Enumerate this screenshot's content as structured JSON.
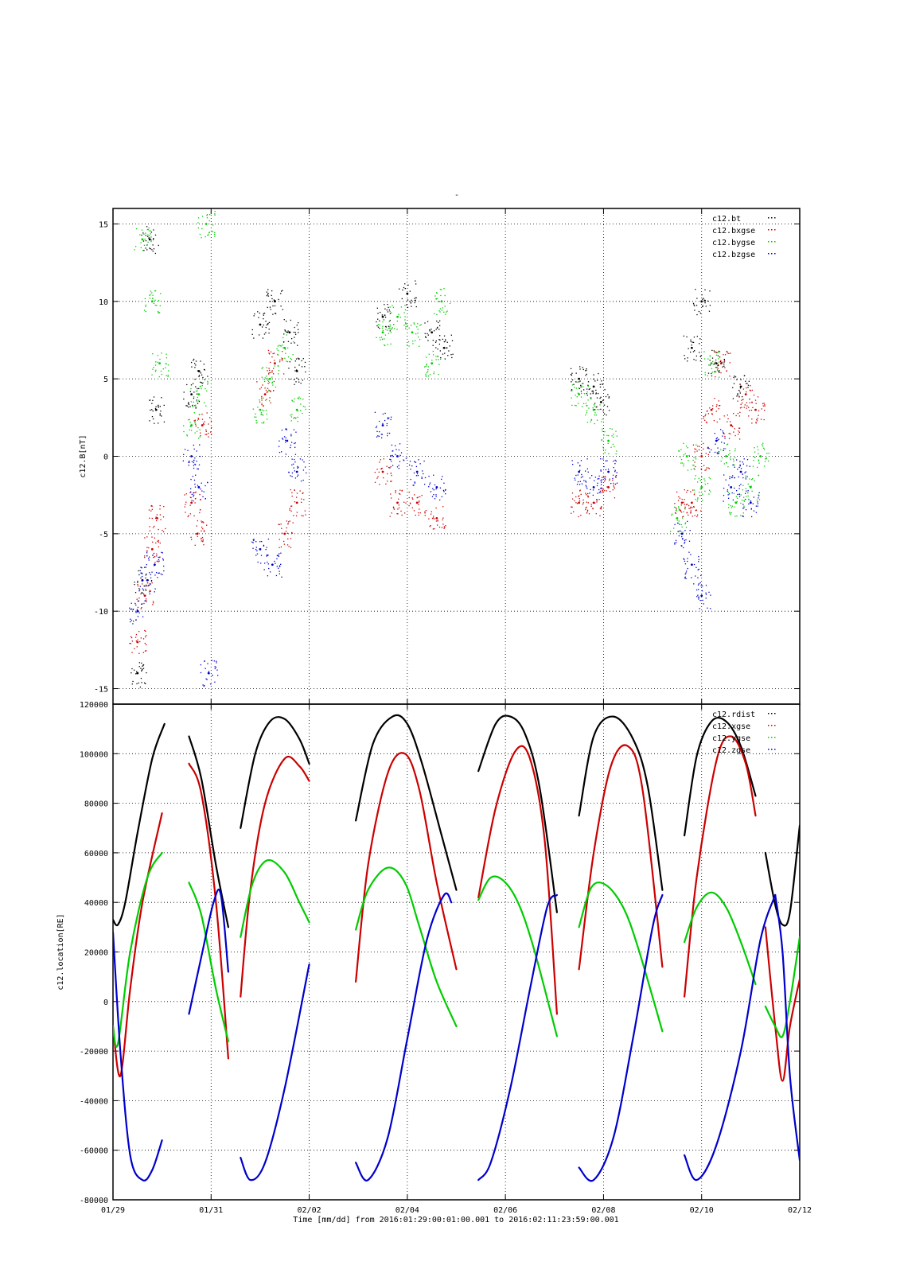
{
  "title_mark": "-",
  "x_axis": {
    "label": "Time [mm/dd]  from 2016:01:29:00:01:00.001  to  2016:02:11:23:59:00.001",
    "tick_labels": [
      "01/29",
      "01/31",
      "02/02",
      "02/04",
      "02/06",
      "02/08",
      "02/10",
      "02/12"
    ],
    "range_days": [
      0,
      14
    ]
  },
  "colors": {
    "black": "#000000",
    "red": "#cc0000",
    "green": "#00cc00",
    "blue": "#0000cc"
  },
  "chart_data": [
    {
      "type": "scatter",
      "ylabel": "c12.B[nT]",
      "ylim": [
        -16,
        16
      ],
      "y_ticks": [
        -15,
        -10,
        -5,
        0,
        5,
        10,
        15
      ],
      "grid": true,
      "legend_position": "top-right",
      "series": [
        {
          "name": "c12.bt",
          "color": "#000000",
          "x": [
            0.5,
            0.6,
            0.75,
            0.88,
            1.6,
            1.75,
            3.0,
            3.3,
            3.6,
            3.75,
            5.5,
            6.0,
            6.5,
            6.75,
            9.5,
            9.8,
            9.95,
            11.8,
            12.0,
            12.3,
            12.8
          ],
          "y": [
            -14,
            -8,
            14,
            3,
            4,
            5.5,
            8.5,
            10,
            8,
            5.5,
            9,
            10.5,
            8,
            7,
            5,
            4.5,
            3.5,
            7,
            10,
            6,
            4.5
          ]
        },
        {
          "name": "c12.bxgse",
          "color": "#cc0000",
          "x": [
            0.5,
            0.65,
            0.8,
            0.9,
            1.6,
            1.72,
            1.82,
            3.1,
            3.3,
            3.5,
            3.75,
            5.5,
            5.8,
            6.2,
            6.6,
            9.5,
            9.8,
            10.1,
            11.6,
            11.8,
            12.0,
            12.2,
            12.4,
            12.6,
            12.9,
            13.1
          ],
          "y": [
            -12,
            -9,
            -6,
            -4,
            -3,
            -5,
            2,
            4,
            6,
            -5,
            -3,
            -1,
            -3,
            -3,
            -4,
            -3,
            -3,
            -2,
            -3,
            -3,
            0,
            3,
            6,
            2,
            4,
            3
          ]
        },
        {
          "name": "c12.bygse",
          "color": "#00cc00",
          "x": [
            0.6,
            0.8,
            0.95,
            1.6,
            1.75,
            1.9,
            3.0,
            3.2,
            3.5,
            3.75,
            5.5,
            5.8,
            6.1,
            6.5,
            6.7,
            9.5,
            9.8,
            10.1,
            11.5,
            11.7,
            12.0,
            12.2,
            12.5,
            12.7,
            13.0,
            13.2
          ],
          "y": [
            14,
            10,
            6,
            2,
            4,
            15,
            3,
            5,
            7,
            3,
            8,
            9,
            8,
            6,
            10,
            4,
            3,
            1,
            -4,
            0,
            -2,
            6,
            0,
            -3,
            -2,
            0
          ]
        },
        {
          "name": "c12.bzgse",
          "color": "#0000cc",
          "x": [
            0.5,
            0.7,
            0.85,
            1.6,
            1.75,
            1.95,
            3.0,
            3.25,
            3.55,
            3.75,
            5.5,
            5.8,
            6.2,
            6.6,
            9.5,
            9.8,
            10.1,
            11.6,
            11.8,
            12.0,
            12.3,
            12.6,
            12.8,
            13.0
          ],
          "y": [
            -10,
            -8,
            -7,
            0,
            -2,
            -14,
            -6,
            -7,
            1,
            -1,
            2,
            0,
            -1,
            -2,
            -1,
            -2,
            -1,
            -5,
            -7,
            -9,
            1,
            -2,
            -1,
            -3
          ]
        }
      ]
    },
    {
      "type": "line",
      "ylabel": "c12.location[RE]",
      "ylim": [
        -80000,
        120000
      ],
      "y_ticks": [
        -80000,
        -60000,
        -40000,
        -20000,
        0,
        20000,
        40000,
        60000,
        80000,
        100000,
        120000
      ],
      "grid": true,
      "legend_position": "top-right",
      "series": [
        {
          "name": "c12.rdist",
          "color": "#000000",
          "segments": [
            {
              "x": [
                0.0,
                0.1,
                0.25,
                0.5,
                0.8,
                1.05
              ],
              "y": [
                33000,
                31000,
                40000,
                68000,
                98000,
                112000
              ]
            },
            {
              "x": [
                1.55,
                1.8,
                2.1,
                2.35
              ],
              "y": [
                107000,
                90000,
                55000,
                30000
              ]
            },
            {
              "x": [
                2.6,
                2.9,
                3.2,
                3.5,
                3.8,
                4.0
              ],
              "y": [
                70000,
                100000,
                113000,
                114000,
                106000,
                96000
              ]
            },
            {
              "x": [
                4.95,
                5.3,
                5.7,
                6.0,
                6.3,
                6.7,
                7.0
              ],
              "y": [
                73000,
                104000,
                115000,
                112000,
                96000,
                67000,
                45000
              ]
            },
            {
              "x": [
                7.45,
                7.8,
                8.1,
                8.4,
                8.7,
                9.05
              ],
              "y": [
                93000,
                112000,
                115000,
                108000,
                86000,
                36000
              ]
            },
            {
              "x": [
                9.5,
                9.8,
                10.2,
                10.6,
                10.9,
                11.2
              ],
              "y": [
                75000,
                107000,
                115000,
                106000,
                87000,
                45000
              ]
            },
            {
              "x": [
                11.65,
                11.9,
                12.2,
                12.5,
                12.8,
                13.1
              ],
              "y": [
                67000,
                99000,
                113000,
                113000,
                103000,
                83000
              ]
            },
            {
              "x": [
                13.3,
                13.5,
                13.65,
                13.8,
                14.0
              ],
              "y": [
                60000,
                39000,
                31000,
                36000,
                71000
              ]
            }
          ]
        },
        {
          "name": "c12.xgse",
          "color": "#cc0000",
          "segments": [
            {
              "x": [
                0.0,
                0.15,
                0.35,
                0.6,
                1.0
              ],
              "y": [
                -10000,
                -30000,
                5000,
                40000,
                76000
              ]
            },
            {
              "x": [
                1.55,
                1.8,
                2.1,
                2.35
              ],
              "y": [
                96000,
                84000,
                40000,
                -23000
              ]
            },
            {
              "x": [
                2.6,
                2.8,
                3.1,
                3.5,
                3.8,
                4.0
              ],
              "y": [
                2000,
                45000,
                80000,
                98000,
                95000,
                89000
              ]
            },
            {
              "x": [
                4.95,
                5.2,
                5.6,
                5.95,
                6.25,
                6.6,
                7.0
              ],
              "y": [
                8000,
                55000,
                92000,
                100000,
                85000,
                48000,
                13000
              ]
            },
            {
              "x": [
                7.45,
                7.8,
                8.2,
                8.5,
                8.8,
                9.05
              ],
              "y": [
                42000,
                78000,
                101000,
                98000,
                65000,
                -5000
              ]
            },
            {
              "x": [
                9.5,
                9.8,
                10.15,
                10.5,
                10.8,
                11.2
              ],
              "y": [
                13000,
                60000,
                95000,
                103000,
                85000,
                14000
              ]
            },
            {
              "x": [
                11.65,
                11.9,
                12.3,
                12.6,
                12.9,
                13.1
              ],
              "y": [
                2000,
                50000,
                97000,
                107000,
                96000,
                75000
              ]
            },
            {
              "x": [
                13.3,
                13.5,
                13.65,
                13.8,
                14.0
              ],
              "y": [
                30000,
                -10000,
                -32000,
                -10000,
                9000
              ]
            }
          ]
        },
        {
          "name": "c12.ygse",
          "color": "#00cc00",
          "segments": [
            {
              "x": [
                0.0,
                0.1,
                0.35,
                0.7,
                1.0
              ],
              "y": [
                -10000,
                -17000,
                20000,
                50000,
                60000
              ]
            },
            {
              "x": [
                1.55,
                1.8,
                2.1,
                2.35
              ],
              "y": [
                48000,
                35000,
                5000,
                -16000
              ]
            },
            {
              "x": [
                2.6,
                2.85,
                3.15,
                3.5,
                3.8,
                4.0
              ],
              "y": [
                26000,
                48000,
                57000,
                52000,
                40000,
                32000
              ]
            },
            {
              "x": [
                4.95,
                5.2,
                5.6,
                5.95,
                6.25,
                6.6,
                7.0
              ],
              "y": [
                29000,
                45000,
                54000,
                48000,
                30000,
                8000,
                -10000
              ]
            },
            {
              "x": [
                7.45,
                7.7,
                8.0,
                8.3,
                8.6,
                9.05
              ],
              "y": [
                41000,
                50000,
                48000,
                38000,
                20000,
                -14000
              ]
            },
            {
              "x": [
                9.5,
                9.75,
                10.05,
                10.4,
                10.7,
                11.2
              ],
              "y": [
                30000,
                46000,
                47000,
                38000,
                22000,
                -12000
              ]
            },
            {
              "x": [
                11.65,
                11.9,
                12.2,
                12.5,
                12.8,
                13.1
              ],
              "y": [
                24000,
                38000,
                44000,
                38000,
                24000,
                7000
              ]
            },
            {
              "x": [
                13.3,
                13.5,
                13.65,
                13.8,
                14.0
              ],
              "y": [
                -2000,
                -10000,
                -14000,
                0,
                26000
              ]
            }
          ]
        },
        {
          "name": "c12.zgse",
          "color": "#0000cc",
          "segments": [
            {
              "x": [
                0.0,
                0.15,
                0.35,
                0.6,
                0.8,
                1.0
              ],
              "y": [
                28000,
                -20000,
                -62000,
                -72000,
                -68000,
                -56000
              ]
            },
            {
              "x": [
                1.55,
                1.8,
                2.05,
                2.2,
                2.35
              ],
              "y": [
                -5000,
                18000,
                40000,
                43000,
                12000
              ]
            },
            {
              "x": [
                2.6,
                2.8,
                3.1,
                3.5,
                4.0
              ],
              "y": [
                -63000,
                -72000,
                -65000,
                -35000,
                15000
              ]
            },
            {
              "x": [
                4.95,
                5.2,
                5.6,
                6.0,
                6.4,
                6.75,
                6.9
              ],
              "y": [
                -65000,
                -72000,
                -55000,
                -15000,
                25000,
                43000,
                40000
              ]
            },
            {
              "x": [
                7.45,
                7.7,
                8.1,
                8.5,
                8.85,
                9.05
              ],
              "y": [
                -72000,
                -65000,
                -35000,
                5000,
                38000,
                43000
              ]
            },
            {
              "x": [
                9.5,
                9.8,
                10.2,
                10.6,
                11.0,
                11.2
              ],
              "y": [
                -67000,
                -72000,
                -55000,
                -15000,
                30000,
                43000
              ]
            },
            {
              "x": [
                11.65,
                11.9,
                12.3,
                12.8,
                13.2,
                13.5
              ],
              "y": [
                -62000,
                -72000,
                -58000,
                -20000,
                25000,
                43000
              ]
            },
            {
              "x": [
                13.5,
                13.65,
                13.8,
                14.0
              ],
              "y": [
                43000,
                20000,
                -30000,
                -64000
              ]
            }
          ]
        }
      ]
    }
  ]
}
